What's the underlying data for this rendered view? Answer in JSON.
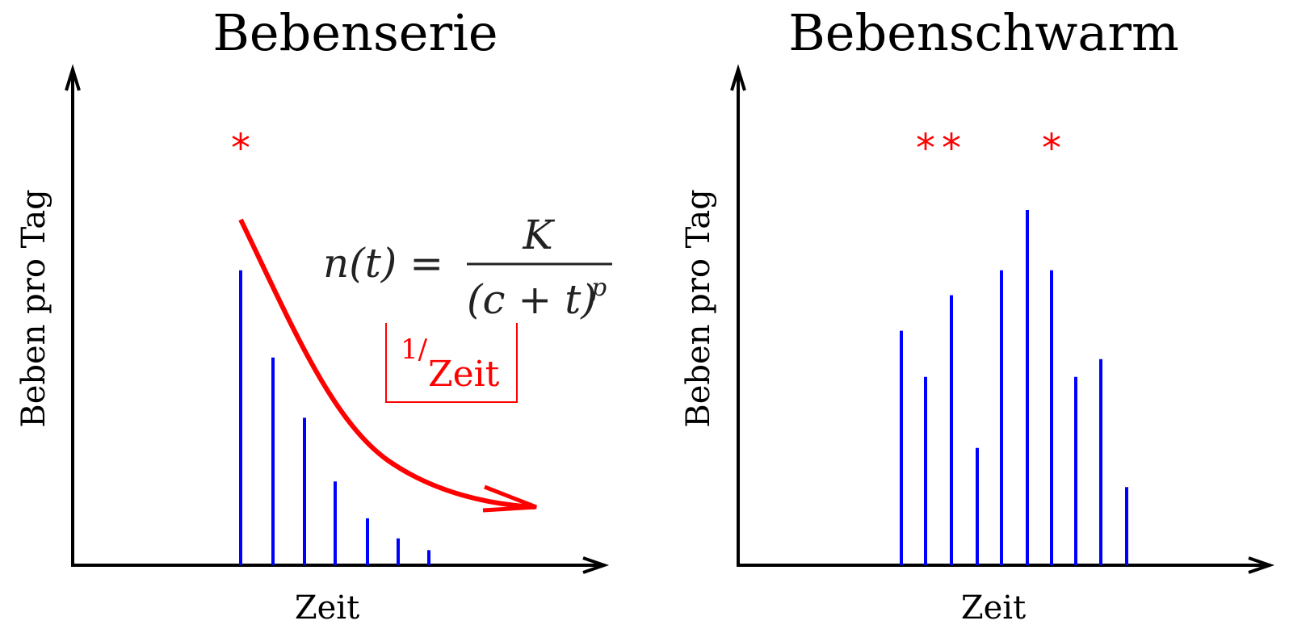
{
  "chart_data": [
    {
      "type": "bar",
      "title": "Bebenserie",
      "xlabel": "Zeit",
      "ylabel": "Beben pro Tag",
      "values": [
        0.88,
        0.62,
        0.44,
        0.25,
        0.14,
        0.08,
        0.045
      ],
      "stars": [
        0
      ],
      "annotations": {
        "formula": {
          "lhs": "n(t) = ",
          "numerator": "K",
          "denominator": "(c + t)",
          "exponent": "p"
        },
        "box": {
          "superscript": "1/",
          "main": "Zeit"
        }
      },
      "colors": {
        "bars": "#0000ff",
        "stars": "#ff0000",
        "curve": "#ff0000",
        "axes": "#000000"
      }
    },
    {
      "type": "bar",
      "title": "Bebenschwarm",
      "xlabel": "Zeit",
      "ylabel": "Beben pro Tag",
      "values": [
        0.66,
        0.53,
        0.76,
        0.33,
        0.83,
        1.0,
        0.83,
        0.53,
        0.58,
        0.22
      ],
      "stars": [
        1,
        2,
        6
      ],
      "colors": {
        "bars": "#0000ff",
        "stars": "#ff0000",
        "axes": "#000000"
      }
    }
  ],
  "star_glyph": "*"
}
